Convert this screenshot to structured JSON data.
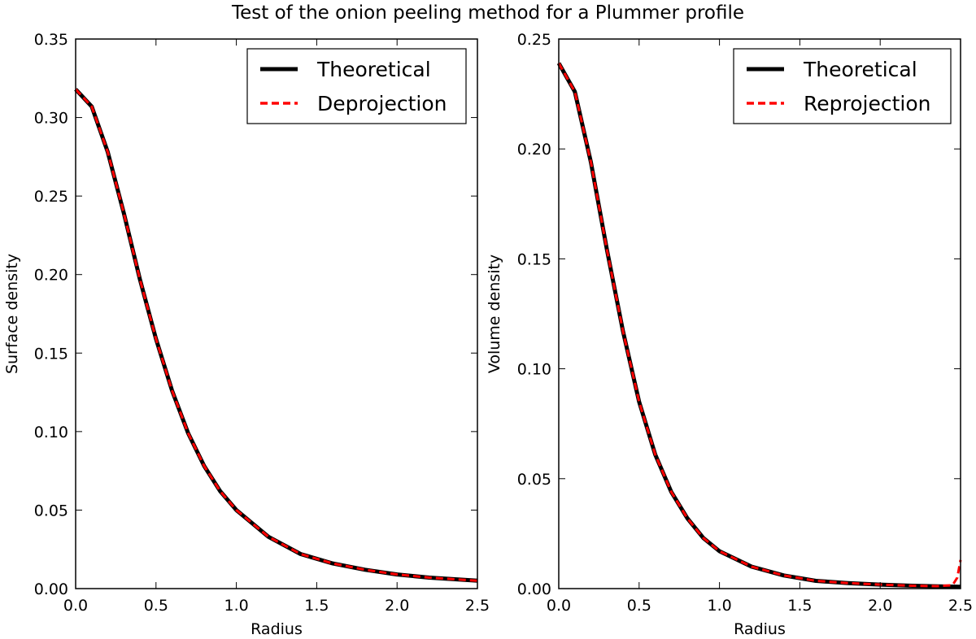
{
  "figure": {
    "title": "Test of the onion peeling method for a Plummer profile"
  },
  "chart_data": [
    {
      "type": "line",
      "xlabel": "Radius",
      "ylabel": "Surface density",
      "xlim": [
        0.0,
        2.5
      ],
      "ylim": [
        0.0,
        0.35
      ],
      "x_ticks": [
        "0.0",
        "0.5",
        "1.0",
        "1.5",
        "2.0",
        "2.5"
      ],
      "y_ticks": [
        "0.00",
        "0.05",
        "0.10",
        "0.15",
        "0.20",
        "0.25",
        "0.30",
        "0.35"
      ],
      "legend": {
        "position": "top-right"
      },
      "grid": false,
      "series": [
        {
          "name": "Theoretical",
          "color": "#000000",
          "style": "solid",
          "x": [
            0.0,
            0.1,
            0.2,
            0.3,
            0.4,
            0.5,
            0.6,
            0.7,
            0.8,
            0.9,
            1.0,
            1.2,
            1.4,
            1.6,
            1.8,
            2.0,
            2.2,
            2.5
          ],
          "y": [
            0.318,
            0.307,
            0.278,
            0.239,
            0.197,
            0.159,
            0.126,
            0.099,
            0.078,
            0.062,
            0.05,
            0.033,
            0.022,
            0.016,
            0.012,
            0.009,
            0.007,
            0.005
          ]
        },
        {
          "name": "Deprojection",
          "color": "#ff0000",
          "style": "dashed",
          "x": [
            0.0,
            0.1,
            0.2,
            0.3,
            0.4,
            0.5,
            0.6,
            0.7,
            0.8,
            0.9,
            1.0,
            1.2,
            1.4,
            1.6,
            1.8,
            2.0,
            2.2,
            2.5
          ],
          "y": [
            0.318,
            0.307,
            0.278,
            0.239,
            0.197,
            0.159,
            0.126,
            0.099,
            0.078,
            0.062,
            0.05,
            0.033,
            0.022,
            0.016,
            0.012,
            0.009,
            0.007,
            0.005
          ]
        }
      ]
    },
    {
      "type": "line",
      "xlabel": "Radius",
      "ylabel": "Volume density",
      "xlim": [
        0.0,
        2.5
      ],
      "ylim": [
        0.0,
        0.25
      ],
      "x_ticks": [
        "0.0",
        "0.5",
        "1.0",
        "1.5",
        "2.0",
        "2.5"
      ],
      "y_ticks": [
        "0.00",
        "0.05",
        "0.10",
        "0.15",
        "0.20",
        "0.25"
      ],
      "legend": {
        "position": "top-right"
      },
      "grid": false,
      "series": [
        {
          "name": "Theoretical",
          "color": "#000000",
          "style": "solid",
          "x": [
            0.0,
            0.1,
            0.2,
            0.3,
            0.4,
            0.5,
            0.6,
            0.7,
            0.8,
            0.9,
            1.0,
            1.2,
            1.4,
            1.6,
            1.8,
            2.0,
            2.2,
            2.5
          ],
          "y": [
            0.239,
            0.226,
            0.194,
            0.154,
            0.117,
            0.085,
            0.061,
            0.044,
            0.032,
            0.023,
            0.017,
            0.01,
            0.006,
            0.0035,
            0.0025,
            0.0018,
            0.0013,
            0.0008
          ]
        },
        {
          "name": "Reprojection",
          "color": "#ff0000",
          "style": "dashed",
          "x": [
            0.0,
            0.1,
            0.2,
            0.3,
            0.4,
            0.5,
            0.6,
            0.7,
            0.8,
            0.9,
            1.0,
            1.2,
            1.4,
            1.6,
            1.8,
            2.0,
            2.2,
            2.35,
            2.45,
            2.48,
            2.5
          ],
          "y": [
            0.239,
            0.226,
            0.194,
            0.154,
            0.117,
            0.085,
            0.061,
            0.044,
            0.032,
            0.023,
            0.017,
            0.01,
            0.006,
            0.0035,
            0.0025,
            0.0018,
            0.0013,
            0.0011,
            0.0015,
            0.005,
            0.013
          ]
        }
      ]
    }
  ]
}
